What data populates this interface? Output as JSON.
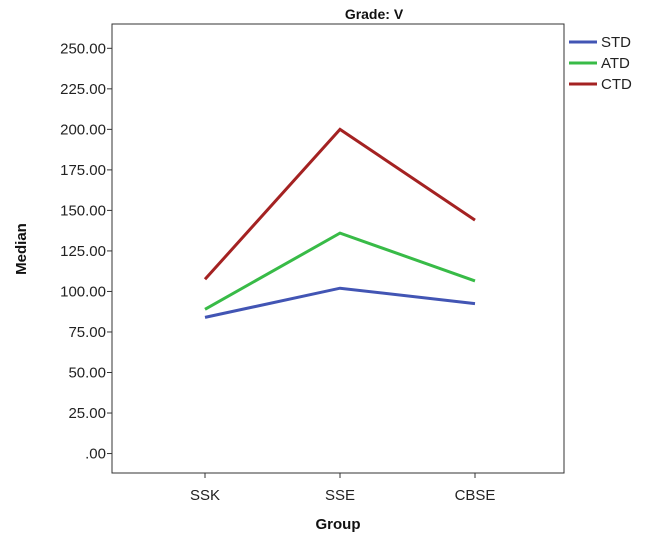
{
  "chart_data": {
    "type": "line",
    "title": "Grade: V",
    "xlabel": "Group",
    "ylabel": "Median",
    "categories": [
      "SSK",
      "SSE",
      "CBSE"
    ],
    "y_ticks": [
      ".00",
      "25.00",
      "50.00",
      "75.00",
      "100.00",
      "125.00",
      "150.00",
      "175.00",
      "200.00",
      "225.00",
      "250.00"
    ],
    "ylim": [
      -12,
      265
    ],
    "grid": false,
    "legend_position": "outside-top-right",
    "series": [
      {
        "name": "STD",
        "values": [
          84,
          102,
          92.5
        ],
        "color": "#4255b4"
      },
      {
        "name": "ATD",
        "values": [
          89,
          136,
          106.5
        ],
        "color": "#38bb47"
      },
      {
        "name": "CTD",
        "values": [
          107.5,
          200,
          144
        ],
        "color": "#a42222"
      }
    ]
  }
}
